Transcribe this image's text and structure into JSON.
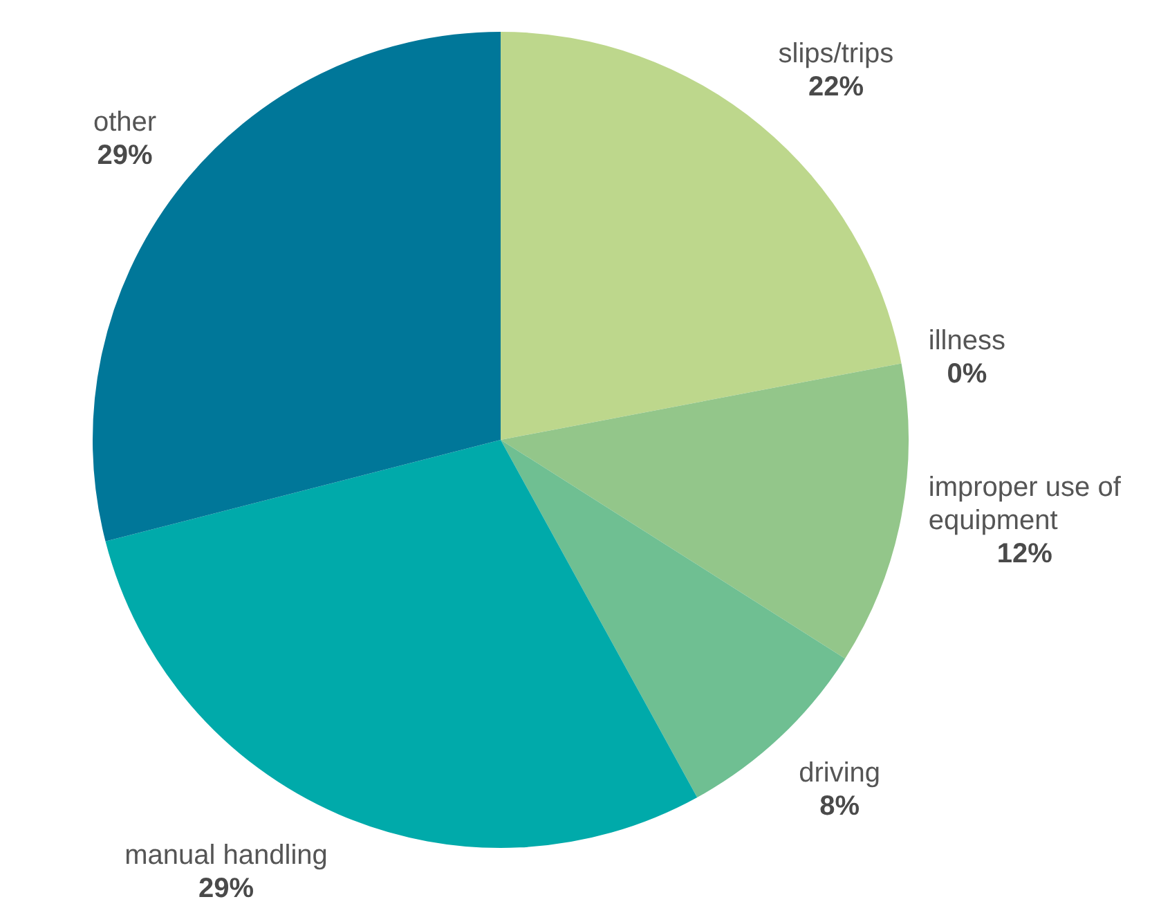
{
  "chart_data": {
    "type": "pie",
    "categories": [
      "slips/trips",
      "illness",
      "improper use of equipment",
      "driving",
      "manual handling",
      "other"
    ],
    "values": [
      22,
      0,
      12,
      8,
      29,
      29
    ],
    "colors": [
      "#bdd78c",
      "#a8cf8a",
      "#93c68a",
      "#6fbf92",
      "#00aaaa",
      "#007799"
    ],
    "value_labels": [
      "22%",
      "0%",
      "12%",
      "8%",
      "29%",
      "29%"
    ]
  }
}
